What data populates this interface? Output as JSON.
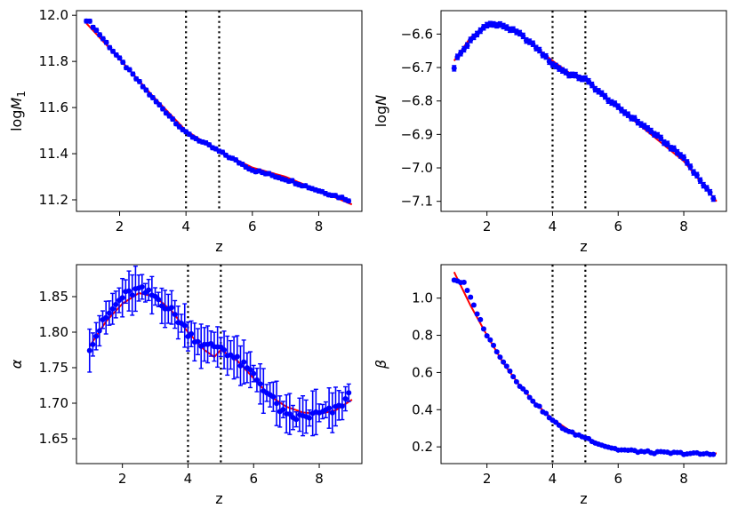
{
  "colors": {
    "points": "#0000ff",
    "fit": "#ff0000",
    "vline": "#000000"
  },
  "chart_data": [
    {
      "type": "scatter",
      "xlabel": "z",
      "ylabel": "logM1",
      "ylabel_parts": {
        "base": "log",
        "var": "M",
        "sub": "1"
      },
      "xlim": [
        0.7,
        9.3
      ],
      "ylim": [
        11.15,
        12.02
      ],
      "xticks": [
        2,
        4,
        6,
        8
      ],
      "yticks": [
        11.2,
        11.4,
        11.6,
        11.8,
        12.0
      ],
      "ytick_labels": [
        "11.2",
        "11.4",
        "11.6",
        "11.8",
        "12.0"
      ],
      "vlines": [
        4,
        5
      ],
      "series": [
        {
          "kind": "points",
          "x_start": 1.0,
          "x_end": 8.9,
          "n": 80,
          "knots": [
            [
              1.0,
              11.98
            ],
            [
              1.1,
              11.97
            ],
            [
              2.0,
              11.81
            ],
            [
              3.0,
              11.64
            ],
            [
              4.0,
              11.49
            ],
            [
              4.5,
              11.45
            ],
            [
              5.0,
              11.41
            ],
            [
              6.0,
              11.33
            ],
            [
              7.0,
              11.29
            ],
            [
              8.0,
              11.24
            ],
            [
              8.9,
              11.2
            ]
          ],
          "error": 0.008
        },
        {
          "kind": "line",
          "knots": [
            [
              1.0,
              11.965
            ],
            [
              2.0,
              11.81
            ],
            [
              3.0,
              11.65
            ],
            [
              4.0,
              11.5
            ],
            [
              5.0,
              11.41
            ],
            [
              6.0,
              11.34
            ],
            [
              7.0,
              11.3
            ],
            [
              8.0,
              11.24
            ],
            [
              9.0,
              11.18
            ]
          ]
        }
      ]
    },
    {
      "type": "scatter",
      "xlabel": "z",
      "ylabel": "logN",
      "ylabel_parts": {
        "base": "log",
        "var": "N",
        "sub": ""
      },
      "xlim": [
        0.6,
        9.3
      ],
      "ylim": [
        -7.13,
        -6.53
      ],
      "xticks": [
        2,
        4,
        6,
        8
      ],
      "yticks": [
        -7.1,
        -7.0,
        -6.9,
        -6.8,
        -6.7,
        -6.6
      ],
      "ytick_labels": [
        "−7.1",
        "−7.0",
        "−6.9",
        "−6.8",
        "−6.7",
        "−6.6"
      ],
      "vlines": [
        4,
        5
      ],
      "series": [
        {
          "kind": "points",
          "x_start": 1.0,
          "x_end": 8.9,
          "n": 80,
          "knots": [
            [
              1.0,
              -6.7
            ],
            [
              1.1,
              -6.67
            ],
            [
              1.5,
              -6.62
            ],
            [
              2.0,
              -6.57
            ],
            [
              2.5,
              -6.575
            ],
            [
              3.0,
              -6.6
            ],
            [
              3.5,
              -6.64
            ],
            [
              4.0,
              -6.69
            ],
            [
              4.5,
              -6.72
            ],
            [
              5.0,
              -6.735
            ],
            [
              5.5,
              -6.78
            ],
            [
              6.0,
              -6.82
            ],
            [
              7.0,
              -6.89
            ],
            [
              8.0,
              -6.97
            ],
            [
              8.9,
              -7.09
            ]
          ],
          "error": 0.008
        },
        {
          "kind": "line",
          "knots": [
            [
              1.0,
              -6.68
            ],
            [
              1.5,
              -6.61
            ],
            [
              2.0,
              -6.575
            ],
            [
              2.5,
              -6.575
            ],
            [
              3.0,
              -6.6
            ],
            [
              3.5,
              -6.64
            ],
            [
              4.0,
              -6.68
            ],
            [
              4.5,
              -6.715
            ],
            [
              5.0,
              -6.73
            ],
            [
              5.5,
              -6.78
            ],
            [
              6.0,
              -6.82
            ],
            [
              7.0,
              -6.9
            ],
            [
              8.0,
              -6.98
            ],
            [
              9.0,
              -7.1
            ]
          ]
        }
      ]
    },
    {
      "type": "scatter",
      "xlabel": "z",
      "ylabel": "α",
      "ylabel_parts": {
        "base": "",
        "var": "α",
        "sub": ""
      },
      "xlim": [
        0.6,
        9.3
      ],
      "ylim": [
        1.615,
        1.895
      ],
      "xticks": [
        2,
        4,
        6,
        8
      ],
      "yticks": [
        1.65,
        1.7,
        1.75,
        1.8,
        1.85
      ],
      "ytick_labels": [
        "1.65",
        "1.70",
        "1.75",
        "1.80",
        "1.85"
      ],
      "vlines": [
        4,
        5
      ],
      "series": [
        {
          "kind": "points",
          "x_start": 1.0,
          "x_end": 8.9,
          "n": 80,
          "knots": [
            [
              1.0,
              1.78
            ],
            [
              1.5,
              1.82
            ],
            [
              2.0,
              1.85
            ],
            [
              2.5,
              1.86
            ],
            [
              3.0,
              1.85
            ],
            [
              3.5,
              1.83
            ],
            [
              4.0,
              1.8
            ],
            [
              4.5,
              1.78
            ],
            [
              5.0,
              1.78
            ],
            [
              5.5,
              1.76
            ],
            [
              6.0,
              1.74
            ],
            [
              6.5,
              1.71
            ],
            [
              7.0,
              1.68
            ],
            [
              7.5,
              1.68
            ],
            [
              8.0,
              1.685
            ],
            [
              8.5,
              1.69
            ],
            [
              8.9,
              1.71
            ]
          ],
          "error_min": 0.01,
          "error_max": 0.032
        },
        {
          "kind": "line",
          "knots": [
            [
              1.0,
              1.78
            ],
            [
              1.5,
              1.815
            ],
            [
              2.0,
              1.84
            ],
            [
              2.5,
              1.855
            ],
            [
              3.0,
              1.85
            ],
            [
              3.5,
              1.83
            ],
            [
              4.0,
              1.8
            ],
            [
              4.5,
              1.775
            ],
            [
              4.8,
              1.765
            ],
            [
              5.0,
              1.775
            ],
            [
              5.5,
              1.76
            ],
            [
              6.0,
              1.735
            ],
            [
              6.5,
              1.71
            ],
            [
              7.0,
              1.695
            ],
            [
              7.5,
              1.687
            ],
            [
              8.0,
              1.685
            ],
            [
              8.5,
              1.69
            ],
            [
              9.0,
              1.705
            ]
          ]
        }
      ]
    },
    {
      "type": "scatter",
      "xlabel": "z",
      "ylabel": "β",
      "ylabel_parts": {
        "base": "",
        "var": "β",
        "sub": ""
      },
      "xlim": [
        0.6,
        9.3
      ],
      "ylim": [
        0.11,
        1.18
      ],
      "xticks": [
        2,
        4,
        6,
        8
      ],
      "yticks": [
        0.2,
        0.4,
        0.6,
        0.8,
        1.0
      ],
      "ytick_labels": [
        "0.2",
        "0.4",
        "0.6",
        "0.8",
        "1.0"
      ],
      "vlines": [
        4,
        5
      ],
      "series": [
        {
          "kind": "points",
          "x_start": 1.0,
          "x_end": 8.9,
          "n": 80,
          "knots": [
            [
              1.0,
              1.1
            ],
            [
              1.3,
              1.08
            ],
            [
              1.5,
              1.0
            ],
            [
              2.0,
              0.8
            ],
            [
              2.5,
              0.66
            ],
            [
              3.0,
              0.53
            ],
            [
              3.5,
              0.43
            ],
            [
              4.0,
              0.34
            ],
            [
              4.5,
              0.28
            ],
            [
              5.0,
              0.25
            ],
            [
              5.5,
              0.21
            ],
            [
              6.0,
              0.185
            ],
            [
              7.0,
              0.17
            ],
            [
              8.0,
              0.165
            ],
            [
              8.9,
              0.16
            ]
          ],
          "error": 0.006
        },
        {
          "kind": "line",
          "knots": [
            [
              1.0,
              1.14
            ],
            [
              1.5,
              0.96
            ],
            [
              2.0,
              0.8
            ],
            [
              2.5,
              0.65
            ],
            [
              3.0,
              0.53
            ],
            [
              3.5,
              0.43
            ],
            [
              4.0,
              0.35
            ],
            [
              4.5,
              0.29
            ],
            [
              5.0,
              0.25
            ],
            [
              5.5,
              0.215
            ],
            [
              6.0,
              0.19
            ],
            [
              7.0,
              0.17
            ],
            [
              8.0,
              0.165
            ],
            [
              9.0,
              0.165
            ]
          ]
        }
      ]
    }
  ]
}
